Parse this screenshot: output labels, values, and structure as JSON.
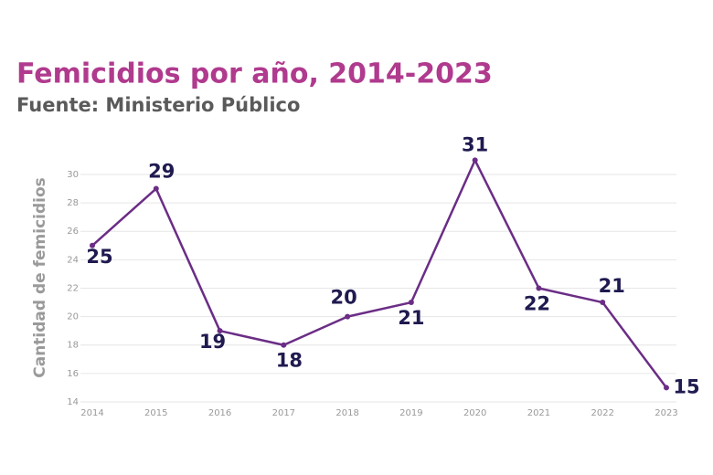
{
  "chart_data": {
    "type": "line",
    "title": "Femicidios por año, 2014-2023",
    "subtitle": "Fuente: Ministerio Público",
    "y_label": "Cantidad de femicidios",
    "categories": [
      "2014",
      "2015",
      "2016",
      "2017",
      "2018",
      "2019",
      "2020",
      "2021",
      "2022",
      "2023"
    ],
    "values": [
      25,
      29,
      19,
      18,
      20,
      21,
      31,
      22,
      21,
      15
    ],
    "color": "#6b2d86",
    "ylim": [
      14,
      31
    ],
    "yticks": [
      14,
      16,
      18,
      20,
      22,
      24,
      26,
      28,
      30
    ],
    "grid": true
  }
}
